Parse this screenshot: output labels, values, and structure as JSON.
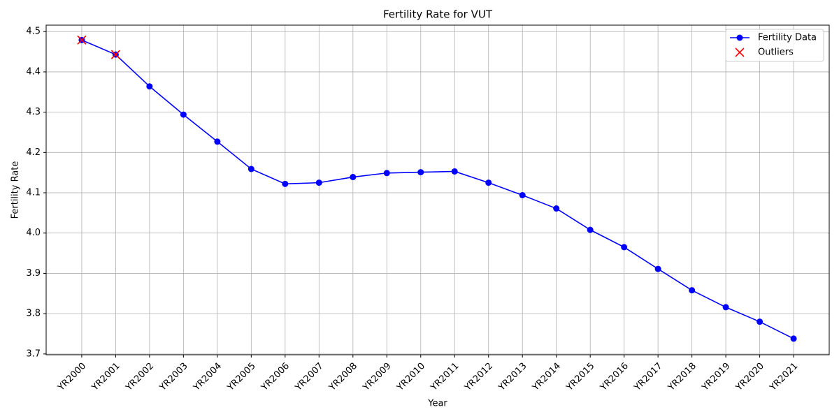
{
  "chart_data": {
    "type": "line",
    "title": "Fertility Rate for VUT",
    "x_label": "Year",
    "y_label": "Fertility Rate",
    "categories": [
      "YR2000",
      "YR2001",
      "YR2002",
      "YR2003",
      "YR2004",
      "YR2005",
      "YR2006",
      "YR2007",
      "YR2008",
      "YR2009",
      "YR2010",
      "YR2011",
      "YR2012",
      "YR2013",
      "YR2014",
      "YR2015",
      "YR2016",
      "YR2017",
      "YR2018",
      "YR2019",
      "YR2020",
      "YR2021"
    ],
    "series": [
      {
        "name": "Fertility Data",
        "color": "#0000ff",
        "marker": "o",
        "values": [
          4.479,
          4.443,
          4.364,
          4.294,
          4.227,
          4.159,
          4.122,
          4.125,
          4.139,
          4.149,
          4.151,
          4.153,
          4.125,
          4.094,
          4.061,
          4.008,
          3.965,
          3.911,
          3.858,
          3.816,
          3.78,
          3.738
        ]
      },
      {
        "name": "Outliers",
        "color": "#ff0000",
        "marker": "x",
        "values": [
          4.479,
          4.443,
          null,
          null,
          null,
          null,
          null,
          null,
          null,
          null,
          null,
          null,
          null,
          null,
          null,
          null,
          null,
          null,
          null,
          null,
          null,
          null
        ]
      }
    ],
    "ylim": [
      3.698,
      4.516
    ],
    "yticks": [
      3.7,
      3.8,
      3.9,
      {
        "value": 4,
        "label": "4.0"
      },
      4.1,
      4.2,
      4.3,
      4.4,
      4.5
    ],
    "grid": true,
    "legend": "upper right"
  }
}
